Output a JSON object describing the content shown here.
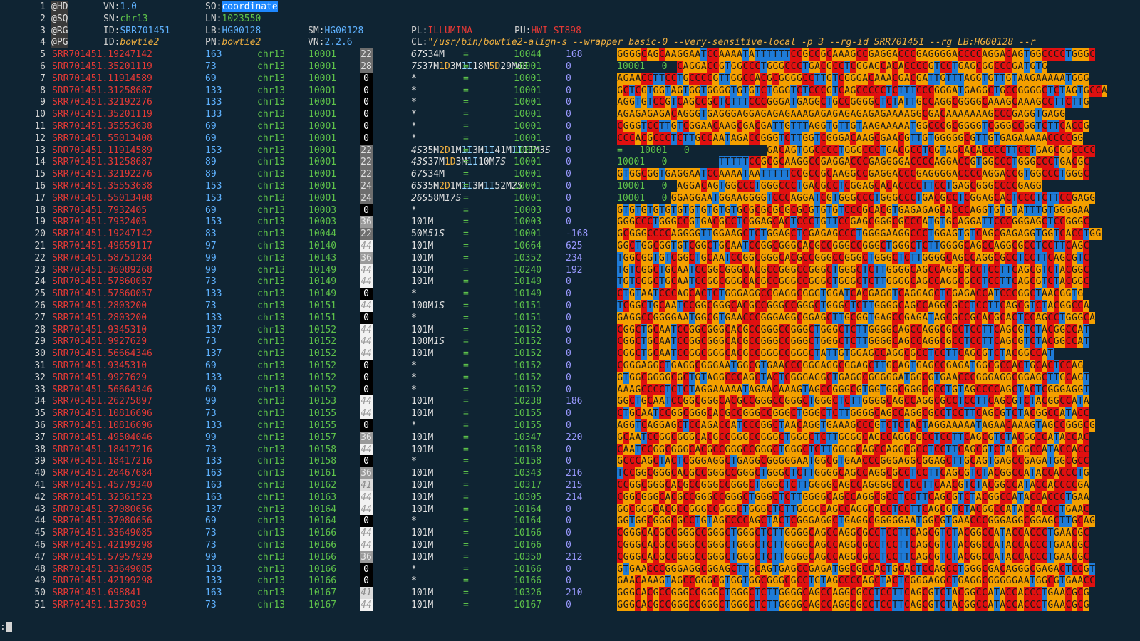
{
  "header": [
    {
      "n": "1",
      "tag": "@HD",
      "f": [
        {
          "k": "VN:",
          "v": "1.0",
          "c": "v-blue"
        },
        {
          "k": "SO:",
          "v": "coordinate",
          "c": "sel"
        }
      ]
    },
    {
      "n": "2",
      "tag": "@SQ",
      "f": [
        {
          "k": "SN:",
          "v": "chr13",
          "c": "v-green"
        },
        {
          "k": "LN:",
          "v": "1023550",
          "c": "v-green"
        }
      ]
    },
    {
      "n": "3",
      "tag": "@RG",
      "f": [
        {
          "k": "ID:",
          "v": "SRR701451",
          "c": "v-blue"
        },
        {
          "k": "LB:",
          "v": "HG00128",
          "c": "v-blue"
        },
        {
          "k": "SM:",
          "v": "HG00128",
          "c": "v-blue"
        },
        {
          "k": "PL:",
          "v": "ILLUMINA",
          "c": "v-red"
        },
        {
          "k": "PU:",
          "v": "HWI-ST898",
          "c": "v-red"
        }
      ]
    },
    {
      "n": "4",
      "tag": "@PG",
      "f": [
        {
          "k": "ID:",
          "v": "bowtie2",
          "c": "v-italic"
        },
        {
          "k": "PN:",
          "v": "bowtie2",
          "c": "v-italic"
        },
        {
          "k": "VN:",
          "v": "2.2.6",
          "c": "v-blue"
        },
        {
          "k": "CL:",
          "v": "\"/usr/bin/bowtie2-align-s --wrapper basic-0 --very-sensitive-local -p 3 --rg-id SRR701451 --rg LB:HG00128 --r",
          "c": "v-italic"
        }
      ]
    }
  ],
  "records": [
    {
      "n": "5",
      "q": "SRR701451.19247142",
      "f": "163",
      "r": "chr13",
      "p": "10001",
      "m": "22",
      "c": "67S34M",
      "e": "=",
      "pn": "10044",
      "t": "168",
      "s": "GGGGCAGCAAGGAATCCAAAATATTTTTTCCGCCGCAAAGCCGAGGACCCGAGGGGACCCCAGGACAGTGGCCCCTGGGC"
    },
    {
      "n": "6",
      "q": "SRR701451.35201119",
      "f": "73",
      "r": "chr13",
      "p": "10001",
      "m": "28",
      "c": "7S37M1D3M1I18M5D29M6S",
      "e": "=",
      "pn": "10001",
      "t": "0",
      "s": "~~~~~~~~~~CAGGACCGTGGCCCTGGGCCCTGACGCCTCGGAGCACACCCCGTCCTGAGCGGCCCGATGTG"
    },
    {
      "n": "7",
      "q": "SRR701451.11914589",
      "f": "69",
      "r": "chr13",
      "p": "10001",
      "m": "0",
      "c": "*",
      "e": "=",
      "pn": "10001",
      "t": "0",
      "s": "AGAACCTTCCTGCCCCGTTGGCCACGCGGGGCCTTGTCGGGACAAACGACGATTGTTTAGGTGTTGTAAGAAAAATGGG"
    },
    {
      "n": "8",
      "q": "SRR701451.31258687",
      "f": "133",
      "r": "chr13",
      "p": "10001",
      "m": "0",
      "c": "*",
      "e": "=",
      "pn": "10001",
      "t": "0",
      "s": "GCTCGTGGTAGTGGTGGGGTGTGTCTGGGTCTCCCGTCAGCCCCCTCTTTCCCGGGATGAGGCTGCCGGGGCTCTAGTGCCA"
    },
    {
      "n": "9",
      "q": "SRR701451.32192276",
      "f": "133",
      "r": "chr13",
      "p": "10001",
      "m": "0",
      "c": "*",
      "e": "=",
      "pn": "10001",
      "t": "0",
      "s": "AGGTGTCCGTCAGCCGCTCTTTCCCGGGATGAGGCTGCCGGGGCTCTATTGCCAGGCGGGGCAAAGCAAAGCCTTCTTG"
    },
    {
      "n": "10",
      "q": "SRR701451.35201119",
      "f": "133",
      "r": "chr13",
      "p": "10001",
      "m": "0",
      "c": "*",
      "e": "=",
      "pn": "10001",
      "t": "0",
      "s": "AGAGAGAGACAGGGTGAGGGAGGAGAGAGAAAGAGAGAGAGAGAGAAAAGGCGACAAAAAAAGCCCGAGGTGAGG"
    },
    {
      "n": "11",
      "q": "SRR701451.35553638",
      "f": "69",
      "r": "chr13",
      "p": "10001",
      "m": "0",
      "c": "*",
      "e": "=",
      "pn": "10001",
      "t": "0",
      "s": "CGGGTCCTTGTCGGAACAAGCGACGATTGTTTAGGTGTTGTAAGAAAAATGGCCCGCGGGGTCGGGCCGGTCTTCACCG"
    },
    {
      "n": "12",
      "q": "SRR701451.55013408",
      "f": "69",
      "r": "chr13",
      "p": "10001",
      "m": "0",
      "c": "*",
      "e": "=",
      "pn": "10001",
      "t": "0",
      "s": "CCCACGCCCTCTTGCCAATAGACCGGGTCTTGGTCGGGACAAGCGAACGTTGTGGGGGCGTTGTGAGAAAAACCCCGG"
    },
    {
      "n": "13",
      "q": "SRR701451.11914589",
      "f": "153",
      "r": "chr13",
      "p": "10001",
      "m": "22",
      "c": "4S35M2D1M1I3M1I41M1I11M3S",
      "e": "=",
      "pn": "10001",
      "t": "0",
      "s": "~~~~~~~~~~~~~~~~~~~~~~~~~GACAGTGGCCCCTGGGCCCTGACGCCTCGTAGCACACCCCTTCCTGAGCGGCCCC"
    },
    {
      "n": "14",
      "q": "SRR701451.31258687",
      "f": "89",
      "r": "chr13",
      "p": "10001",
      "m": "22",
      "c": "43S37M1D3M1I10M7S",
      "e": "=",
      "pn": "10001",
      "t": "0",
      "s": "~~~~~~~~~~~~~~~~~TTTTTCCGCGCAAGGCCGAGGACCCGAGGGGACCCCAGGACCGTGGCCCTGGGCCCTGACGC"
    },
    {
      "n": "15",
      "q": "SRR701451.32192276",
      "f": "89",
      "r": "chr13",
      "p": "10001",
      "m": "22",
      "c": "67S34M",
      "e": "=",
      "pn": "10001",
      "t": "0",
      "s": "GTGGCGGTGAGGAATCCAAAATAATTTTTCCGCCGCAAGGCCGAGGACCCGAGGGGACCCCAGGACCGTGGCCCTGGGC"
    },
    {
      "n": "16",
      "q": "SRR701451.35553638",
      "f": "153",
      "r": "chr13",
      "p": "10001",
      "m": "24",
      "c": "6S35M2D1M1I3M1I52M2S",
      "e": "=",
      "pn": "10001",
      "t": "0",
      "s": "~~~~~~~~~~AGGACAGTGGCCCTGGGCCCTGACGCCTCGGAGCACACCCCTTCCTGAGCGGGCCCCGAGG"
    },
    {
      "n": "17",
      "q": "SRR701451.55013408",
      "f": "153",
      "r": "chr13",
      "p": "10001",
      "m": "24",
      "c": "26S58M17S",
      "e": "=",
      "pn": "10001",
      "t": "0",
      "s": "~~~~~~~~~GGAGGAATGGAAGGGGTCCCAGGATCGTGGGCCCTGGGCCCTGACGCCTCGGAGCACTCCCTCTTCCGAGG"
    },
    {
      "n": "18",
      "q": "SRR701451.7932405",
      "f": "69",
      "r": "chr13",
      "p": "10003",
      "m": "0",
      "c": "*",
      "e": "=",
      "pn": "10003",
      "t": "0",
      "s": "GTGTGTGTGTGTGTGTGTGTGCGCGCGCGCGCGTGTGTCCCGCACGTGAGAGAGCACCCAGGTGTGTATTTGTGGGGAA"
    },
    {
      "n": "19",
      "q": "SRR701451.7932405",
      "f": "153",
      "r": "chr13",
      "p": "10003",
      "m": "36",
      "c": "101M",
      "e": "=",
      "pn": "10003",
      "t": "0",
      "s": "GGGCCCTGGGCCGTGACGCCTCGGAGCACTCCCTGTTCCGAGCGGGCGCCCATGTGCAGGATTCCCGGGAGCTCCGGGC"
    },
    {
      "n": "20",
      "q": "SRR701451.19247142",
      "f": "83",
      "r": "chr13",
      "p": "10044",
      "m": "22",
      "c": "50M51S",
      "e": "=",
      "pn": "10001",
      "t": "-168",
      "s": "GCGGGCCCCAGGGGTTGGAAGCTCTGGAGCTCGAGAGCCCTGGGGAAGGCCCTGGAGTGTCAGCGAGAGGTGGTCACCTGG"
    },
    {
      "n": "21",
      "q": "SRR701451.49659117",
      "f": "97",
      "r": "chr13",
      "p": "10140",
      "m": "44",
      "c": "101M",
      "e": "=",
      "pn": "10664",
      "t": "625",
      "s": "GGCTGGCGGTGTCGGCTGCAATCCGGCGGGCACGCCGGGCCGGGCTGGGCTCTTGGGGCAGCCAGGCGCCTCCTTCAGC"
    },
    {
      "n": "22",
      "q": "SRR701451.58751284",
      "f": "99",
      "r": "chr13",
      "p": "10143",
      "m": "36",
      "c": "101M",
      "e": "=",
      "pn": "10352",
      "t": "234",
      "s": "TGGCGGTGTCGGCTGCAATCCGGCGGGCACGCCGGGCCGGGCTGGGCTCTTGGGGCAGCCAGGCGCCTCCTTCAGCGTC"
    },
    {
      "n": "23",
      "q": "SRR701451.36089268",
      "f": "99",
      "r": "chr13",
      "p": "10149",
      "m": "44",
      "c": "101M",
      "e": "=",
      "pn": "10240",
      "t": "192",
      "s": "TGTCGGCTGCAATCCGGCGGGCACGCCGGGCCGGGCTGGGCTCTTGGGGCAGCCAGGCGCCTCCTTCAGCGTCTACGGC"
    },
    {
      "n": "24",
      "q": "SRR701451.57860057",
      "f": "73",
      "r": "chr13",
      "p": "10149",
      "m": "44",
      "c": "101M",
      "e": "=",
      "pn": "10149",
      "t": "0",
      "s": "TGTCGGCTGCAATCCGGCGGGCACGCCGGGCCGGGCTGGGCTCTTGGGGCAGCCAGGCGCCTCCTTCAGCGTCTACGGC"
    },
    {
      "n": "25",
      "q": "SRR701451.57860057",
      "f": "133",
      "r": "chr13",
      "p": "10149",
      "m": "0",
      "c": "*",
      "e": "=",
      "pn": "10149",
      "t": "0",
      "s": "CTGTAATCCCAGCACTCTGGGAGGCCGAGGCGGGTGGATCACGAGGTCAGGAGCTCGAGACCATCCCGGCTAACGGTG"
    },
    {
      "n": "26",
      "q": "SRR701451.2803200",
      "f": "73",
      "r": "chr13",
      "p": "10151",
      "m": "44",
      "c": "100M1S",
      "e": "=",
      "pn": "10151",
      "t": "0",
      "s": "TCGGCTGCAATCCGGCGGGCACGCCGGGCCGGGCTGGGCTCTTGGGGCAGCCAGGCGCCTCCTTCAGCGTCTACGGCCA"
    },
    {
      "n": "27",
      "q": "SRR701451.2803200",
      "f": "133",
      "r": "chr13",
      "p": "10151",
      "m": "0",
      "c": "*",
      "e": "=",
      "pn": "10151",
      "t": "0",
      "s": "GAGGCCGGGGAATGGCGTGAACCCGGGAGGCGGAGCTTGCGGTGAGCCGAGATAGCGCCGCACGCACTCCAGCCTGGGCA"
    },
    {
      "n": "28",
      "q": "SRR701451.9345310",
      "f": "137",
      "r": "chr13",
      "p": "10152",
      "m": "44",
      "c": "101M",
      "e": "=",
      "pn": "10152",
      "t": "0",
      "s": "CGGCTGCAATCCGGCGGGCACGCCGGGCCGGGCTGGGCTCTTGGGGCAGCCAGGCGCCTCCTTCAGCGTCTACGGCCAT"
    },
    {
      "n": "29",
      "q": "SRR701451.9927629",
      "f": "73",
      "r": "chr13",
      "p": "10152",
      "m": "44",
      "c": "100M1S",
      "e": "=",
      "pn": "10152",
      "t": "0",
      "s": "CGGCTGCAATCCGGCGGGCACGCCGGGCCGGGCTGGGCTCTTGGGGCAGCCAGGCGCCTCCTTCAGCGTCTACGGCCAT"
    },
    {
      "n": "30",
      "q": "SRR701451.56664346",
      "f": "137",
      "r": "chr13",
      "p": "10152",
      "m": "44",
      "c": "101M",
      "e": "=",
      "pn": "10152",
      "t": "0",
      "s": "CGGCTGCAATCCGGCGGGCACGCCGGGCCGGGCTATTGTGGAGCCAGGCGCCTCCTTCAGCGTCTACGGCCAT"
    },
    {
      "n": "31",
      "q": "SRR701451.9345310",
      "f": "69",
      "r": "chr13",
      "p": "10152",
      "m": "0",
      "c": "*",
      "e": "=",
      "pn": "10152",
      "t": "0",
      "s": "CGGGAGGCTGAGGCGGGAATGGCGTGAACCCGGGAGGCGGAGCTTGCAGTGAGCCGAGATGGCGCCACTGCACTCCAG"
    },
    {
      "n": "32",
      "q": "SRR701451.9927629",
      "f": "133",
      "r": "chr13",
      "p": "10152",
      "m": "0",
      "c": "*",
      "e": "=",
      "pn": "10152",
      "t": "0",
      "s": "GTGGCGGGGCGCTGTAGGCCCAGCTACTCGGGAGGCTGAGGCGGGGGATGGCGTGAACCCGGGAGGCGGAGCTTGCAGT"
    },
    {
      "n": "33",
      "q": "SRR701451.56664346",
      "f": "69",
      "r": "chr13",
      "p": "10152",
      "m": "0",
      "c": "*",
      "e": "=",
      "pn": "10152",
      "t": "0",
      "s": "AAAGCCCCTCTCTAGGAAAAATAGAACAAAGTAGCCGGGCGTGGTGGCGGGCGCCTGTAGCCCCAGCTACTCGGGAGGT"
    },
    {
      "n": "34",
      "q": "SRR701451.26275897",
      "f": "99",
      "r": "chr13",
      "p": "10153",
      "m": "44",
      "c": "101M",
      "e": "=",
      "pn": "10238",
      "t": "186",
      "s": "GGCTGCAATCCGGCGGGCACGCCGGGCCGGGCTGGGCTCTTGGGGCAGCCAGGCGCCTCCTTCAGCGTCTACGGCCATA"
    },
    {
      "n": "35",
      "q": "SRR701451.10816696",
      "f": "73",
      "r": "chr13",
      "p": "10155",
      "m": "44",
      "c": "101M",
      "e": "=",
      "pn": "10155",
      "t": "0",
      "s": "CTGCAATCCGGCGGGCACGCCGGGCCGGGCTGGGCTCTTGGGGCAGCCAGGCGCCTCCTTCAGCGTCTACGGCCATACC"
    },
    {
      "n": "36",
      "q": "SRR701451.10816696",
      "f": "133",
      "r": "chr13",
      "p": "10155",
      "m": "0",
      "c": "*",
      "e": "=",
      "pn": "10155",
      "t": "0",
      "s": "AGGTCAGGAGCTCCAGACCATCCCGGCTAACAGGTGAAAGCCCGTCTCTACTAGGAAAAATAGAACAAAGTAGCCGGGCG"
    },
    {
      "n": "37",
      "q": "SRR701451.49504046",
      "f": "99",
      "r": "chr13",
      "p": "10157",
      "m": "36",
      "c": "101M",
      "e": "=",
      "pn": "10347",
      "t": "220",
      "s": "GCAATCCGGCGGGCACGCCGGGCCGGGCTGGGCTCTTGGGGCAGCCAGGCGCCTCCTTCAGCGTCTACGGCCATACCAC"
    },
    {
      "n": "38",
      "q": "SRR701451.18417216",
      "f": "73",
      "r": "chr13",
      "p": "10158",
      "m": "44",
      "c": "101M",
      "e": "=",
      "pn": "10158",
      "t": "0",
      "s": "CAATCCGGCGGGCACGCCGGGCCGGGCTGGGCTCTTGGGGCAGCCAGGCGCCTCCTTCAGCGTCTACGGCCATACCACC"
    },
    {
      "n": "39",
      "q": "SRR701451.18417216",
      "f": "133",
      "r": "chr13",
      "p": "10158",
      "m": "0",
      "c": "*",
      "e": "=",
      "pn": "10158",
      "t": "0",
      "s": "GCCCAGCTACTCGGGAGGCTGAGGCGGGGGAATGGCGTGAACCCGGGAGGCGGAGCTTGCAGTGAGCCGAGATGGCGCC"
    },
    {
      "n": "40",
      "q": "SRR701451.20467684",
      "f": "163",
      "r": "chr13",
      "p": "10161",
      "m": "36",
      "c": "101M",
      "e": "=",
      "pn": "10343",
      "t": "216",
      "s": "TCCGGCGGGCACGCCGGGCCGGGCTGGGCTCTTGGGGCAGCCAGGCGCCTCCTTCAGCGTCTACGGCCATACCACCCTG"
    },
    {
      "n": "41",
      "q": "SRR701451.45779340",
      "f": "163",
      "r": "chr13",
      "p": "10162",
      "m": "41",
      "c": "101M",
      "e": "=",
      "pn": "10317",
      "t": "215",
      "s": "CCGGCGGGCACGCCGGGCCGGGCTGGGCTCTTGGGGCAGCCAGGGGCCTCCTTCAACGTCTACGGCCATACCACCCCGA"
    },
    {
      "n": "42",
      "q": "SRR701451.32361523",
      "f": "163",
      "r": "chr13",
      "p": "10163",
      "m": "44",
      "c": "101M",
      "e": "=",
      "pn": "10305",
      "t": "214",
      "s": "CGGCGGGCACGCCGGGCCGGGCTGGGCTCTTGGGGCAGCCAGGCGCCTCCTTCAGCGTCTACGGCCATACCACCCTGAA"
    },
    {
      "n": "43",
      "q": "SRR701451.37080656",
      "f": "137",
      "r": "chr13",
      "p": "10164",
      "m": "44",
      "c": "101M",
      "e": "=",
      "pn": "10164",
      "t": "0",
      "s": "GGCGGGCACGCCGGGCCGGGCTGGGCTCTTGGGGCAGCCAGGCGCCTCCTTCAGCGTCTACGGCCATACCACCCTGAAC"
    },
    {
      "n": "44",
      "q": "SRR701451.37080656",
      "f": "69",
      "r": "chr13",
      "p": "10164",
      "m": "0",
      "c": "*",
      "e": "=",
      "pn": "10164",
      "t": "0",
      "s": "GGTGGCGGGCGCCTGTAGCCCCAGCTACTCGGGAGGCTGAGGCGGGGGAATGGCGTGAACCCGGGAGGCGGAGCTTGCAG"
    },
    {
      "n": "45",
      "q": "SRR701451.33649085",
      "f": "73",
      "r": "chr13",
      "p": "10166",
      "m": "44",
      "c": "101M",
      "e": "=",
      "pn": "10166",
      "t": "0",
      "s": "CGGGCACGCCGGGCCGGGCTGGGCTCTTGGGGCAGCCAGGCGCCTCCTTCAGCGTCTACGGCCATACCACCCTGAACGC"
    },
    {
      "n": "46",
      "q": "SRR701451.42199298",
      "f": "73",
      "r": "chr13",
      "p": "10166",
      "m": "44",
      "c": "101M",
      "e": "=",
      "pn": "10166",
      "t": "0",
      "s": "CGGGCACGCCGGGCCGGGCTGGGCTCTTGGGGCAGCCAGGCGCCTCCTTCAGCGTCTACGGCCATACCACCCTGAACGC"
    },
    {
      "n": "47",
      "q": "SRR701451.57957929",
      "f": "99",
      "r": "chr13",
      "p": "10166",
      "m": "36",
      "c": "101M",
      "e": "=",
      "pn": "10350",
      "t": "212",
      "s": "CGGGCACGCCGGGCCGGGCTGGGCTCTTGGGGCAGCCAGGCGCCTCCTTCAGCGTCTACGGCCATACCACCCTGAACGC"
    },
    {
      "n": "48",
      "q": "SRR701451.33649085",
      "f": "133",
      "r": "chr13",
      "p": "10166",
      "m": "0",
      "c": "*",
      "e": "=",
      "pn": "10166",
      "t": "0",
      "s": "GTGAACCCGGGAGGCGGAGCTTGCAGTGAGCCGAGATGGCGCCACTGCACTCCAGCCTGGGCGACAGGGCGAGACTCCGT"
    },
    {
      "n": "49",
      "q": "SRR701451.42199298",
      "f": "133",
      "r": "chr13",
      "p": "10166",
      "m": "0",
      "c": "*",
      "e": "=",
      "pn": "10166",
      "t": "0",
      "s": "GAACAAAGTAGCCGGGCGTGGTGGCGGGCGCCTGTAGCCCCAGCTACTCGGGAGGCTGAGGCGGGGGAATGGCGTGAACC"
    },
    {
      "n": "50",
      "q": "SRR701451.698841",
      "f": "163",
      "r": "chr13",
      "p": "10167",
      "m": "41",
      "c": "101M",
      "e": "=",
      "pn": "10326",
      "t": "210",
      "s": "GGGCACGCCGGGCCGGGCTGGGCTCTTGGGGCAGCCAGGCGCCTCCTTCAGCGTCTACGGCCATACCACCCTGAACGCG"
    },
    {
      "n": "51",
      "q": "SRR701451.1373039",
      "f": "73",
      "r": "chr13",
      "p": "10167",
      "m": "44",
      "c": "101M",
      "e": "=",
      "pn": "10167",
      "t": "0",
      "s": "GGGCACGCCGGGCCGGGCTGGGCTCTTGGGGCAGCCAGGCGCCTCCTTCAGCGTCTACGGCCATACCACCCTGAACGCG"
    }
  ],
  "overlay": {
    "r6": [
      "10001",
      "0"
    ],
    "r13": [
      "=",
      "10001",
      "0"
    ],
    "r14": [
      "10001",
      "0"
    ],
    "r16": [
      "10001",
      "0"
    ],
    "r17": [
      "10001",
      "0"
    ]
  },
  "colors": {
    "A": "#f4a000",
    "C": "#e01010",
    "G": "#f4a000",
    "T": "#1e7bd8",
    "bg": "#0f2433"
  },
  "command_prompt": ":"
}
